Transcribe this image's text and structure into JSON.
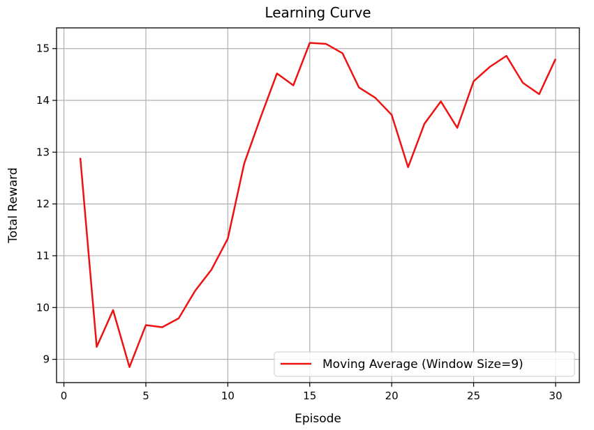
{
  "chart_data": {
    "type": "line",
    "title": "Learning Curve",
    "xlabel": "Episode",
    "ylabel": "Total Reward",
    "xlim": [
      -0.45,
      31.45
    ],
    "ylim": [
      8.55,
      15.4
    ],
    "xticks": [
      0,
      5,
      10,
      15,
      20,
      25,
      30
    ],
    "yticks": [
      9,
      10,
      11,
      12,
      13,
      14,
      15
    ],
    "grid": true,
    "legend_position": "lower-right",
    "series": [
      {
        "name": "Moving Average (Window Size=9)",
        "color": "#ee1111",
        "x": [
          1,
          2,
          3,
          4,
          5,
          6,
          7,
          8,
          9,
          10,
          11,
          12,
          13,
          14,
          15,
          16,
          17,
          18,
          19,
          20,
          21,
          22,
          23,
          24,
          25,
          26,
          27,
          28,
          29,
          30
        ],
        "y": [
          12.89,
          9.24,
          9.95,
          8.85,
          9.66,
          9.62,
          9.79,
          10.32,
          10.73,
          11.33,
          12.78,
          13.67,
          14.52,
          14.29,
          15.11,
          15.09,
          14.91,
          14.25,
          14.05,
          13.72,
          12.71,
          13.55,
          13.98,
          13.47,
          14.37,
          14.65,
          14.86,
          14.34,
          14.12,
          14.8
        ]
      }
    ]
  }
}
